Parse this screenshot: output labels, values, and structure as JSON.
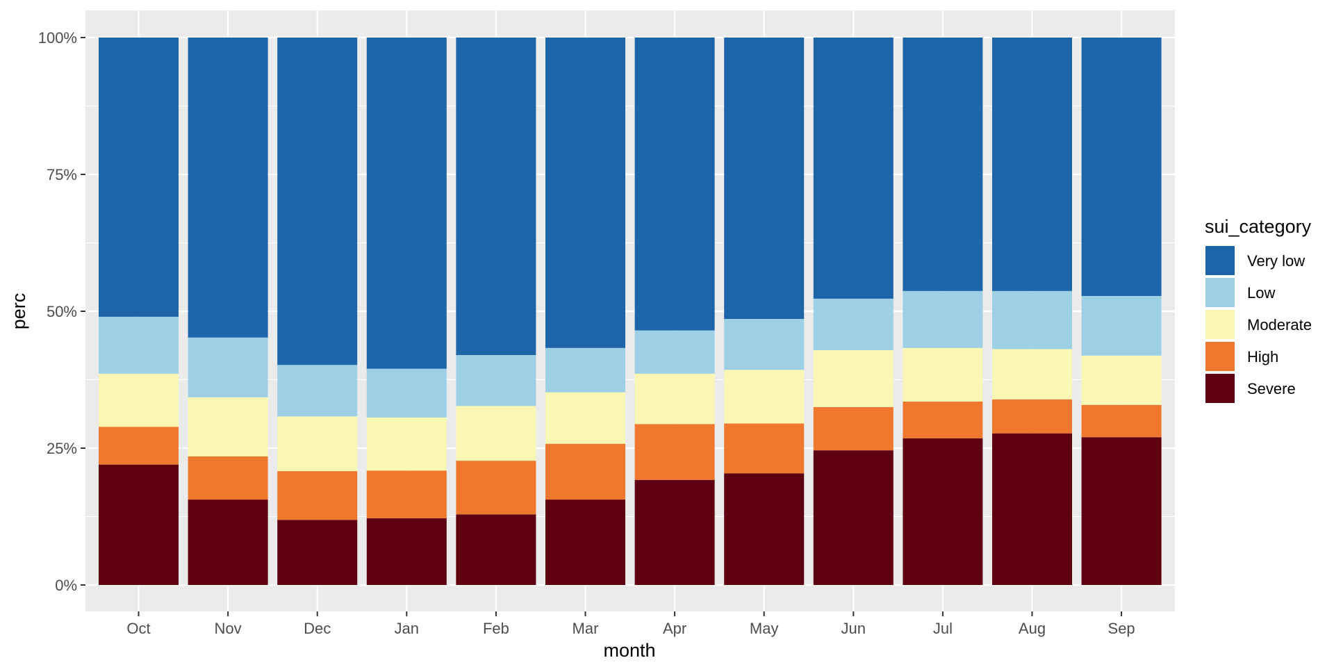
{
  "chart_data": {
    "type": "bar",
    "stacked": true,
    "normalized": true,
    "title": "",
    "xlabel": "month",
    "ylabel": "perc",
    "ylim": [
      0,
      1
    ],
    "y_ticks": [
      0,
      0.25,
      0.5,
      0.75,
      1.0
    ],
    "y_tick_labels": [
      "0%",
      "25%",
      "50%",
      "75%",
      "100%"
    ],
    "categories": [
      "Oct",
      "Nov",
      "Dec",
      "Jan",
      "Feb",
      "Mar",
      "Apr",
      "May",
      "Jun",
      "Jul",
      "Aug",
      "Sep"
    ],
    "legend_title": "sui_category",
    "legend_position": "right",
    "series": [
      {
        "name": "Very low",
        "color": "#1D65A8",
        "values": [
          0.51,
          0.548,
          0.598,
          0.605,
          0.58,
          0.567,
          0.535,
          0.514,
          0.477,
          0.463,
          0.463,
          0.472
        ]
      },
      {
        "name": "Low",
        "color": "#9ED0E5",
        "values": [
          0.104,
          0.109,
          0.094,
          0.089,
          0.093,
          0.081,
          0.079,
          0.093,
          0.094,
          0.104,
          0.106,
          0.109
        ]
      },
      {
        "name": "Moderate",
        "color": "#F9F7B3",
        "values": [
          0.097,
          0.108,
          0.1,
          0.097,
          0.1,
          0.094,
          0.092,
          0.098,
          0.104,
          0.098,
          0.092,
          0.09
        ]
      },
      {
        "name": "High",
        "color": "#F0772E",
        "values": [
          0.069,
          0.079,
          0.089,
          0.087,
          0.098,
          0.102,
          0.102,
          0.091,
          0.079,
          0.067,
          0.062,
          0.059
        ]
      },
      {
        "name": "Severe",
        "color": "#5E0010",
        "values": [
          0.22,
          0.156,
          0.119,
          0.122,
          0.129,
          0.156,
          0.192,
          0.204,
          0.246,
          0.268,
          0.277,
          0.27
        ]
      }
    ]
  }
}
